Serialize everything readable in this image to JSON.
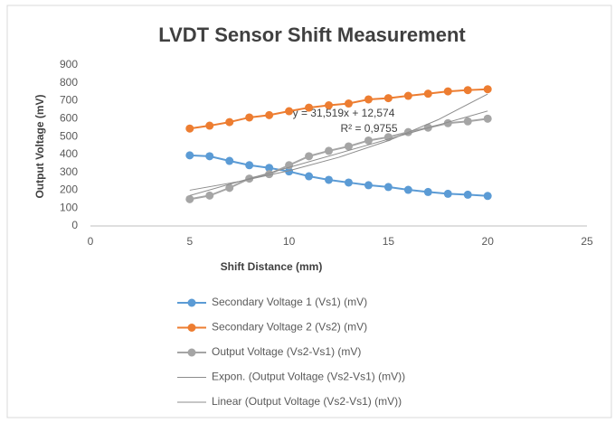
{
  "chart_data": {
    "type": "scatter-line",
    "title": "LVDT Sensor Shift Measurement",
    "xlabel": "Shift Distance (mm)",
    "ylabel": "Output Voltage (mV)",
    "xlim": [
      0,
      25
    ],
    "xticks": [
      0,
      5,
      10,
      15,
      20,
      25
    ],
    "ylim": [
      0,
      900
    ],
    "yticks": [
      0,
      100,
      200,
      300,
      400,
      500,
      600,
      700,
      800,
      900
    ],
    "grid": false,
    "legend": "bottom",
    "series": [
      {
        "name": "Secondary Voltage 1 (Vs1) (mV)",
        "color": "#5b9bd5",
        "marker": true,
        "x": [
          5,
          6,
          7,
          8,
          9,
          10,
          11,
          12,
          13,
          14,
          15,
          16,
          17,
          18,
          19,
          20
        ],
        "values": [
          395,
          390,
          364,
          340,
          325,
          305,
          278,
          258,
          243,
          228,
          218,
          202,
          190,
          180,
          175,
          168
        ]
      },
      {
        "name": "Secondary Voltage 2 (Vs2) (mV)",
        "color": "#ed7d31",
        "marker": true,
        "x": [
          5,
          6,
          7,
          8,
          9,
          10,
          11,
          12,
          13,
          14,
          15,
          16,
          17,
          18,
          19,
          20
        ],
        "values": [
          545,
          561,
          581,
          607,
          620,
          642,
          662,
          675,
          685,
          708,
          715,
          728,
          740,
          753,
          760,
          765
        ]
      },
      {
        "name": "Output Voltage (Vs2-Vs1) (mV)",
        "color": "#a5a5a5",
        "marker": true,
        "x": [
          5,
          6,
          7,
          8,
          9,
          10,
          11,
          12,
          13,
          14,
          15,
          16,
          17,
          18,
          19,
          20
        ],
        "values": [
          150,
          170,
          213,
          265,
          290,
          340,
          390,
          420,
          445,
          478,
          497,
          525,
          550,
          575,
          585,
          600
        ]
      },
      {
        "name": "Expon. (Output Voltage (Vs2-Vs1) (mV))",
        "color": "#8c8c8c",
        "marker": false,
        "x": [
          5,
          7.5,
          10,
          12.5,
          15,
          17.5,
          20
        ],
        "values": [
          200,
          249,
          309,
          384,
          477,
          594,
          738
        ]
      },
      {
        "name": "Linear (Output Voltage (Vs2-Vs1) (mV))",
        "color": "#8c8c8c",
        "marker": false,
        "x": [
          5,
          20
        ],
        "values": [
          170,
          643
        ]
      }
    ],
    "annotations": [
      "y = 31,519x + 12,574",
      "R² = 0,9755"
    ]
  }
}
